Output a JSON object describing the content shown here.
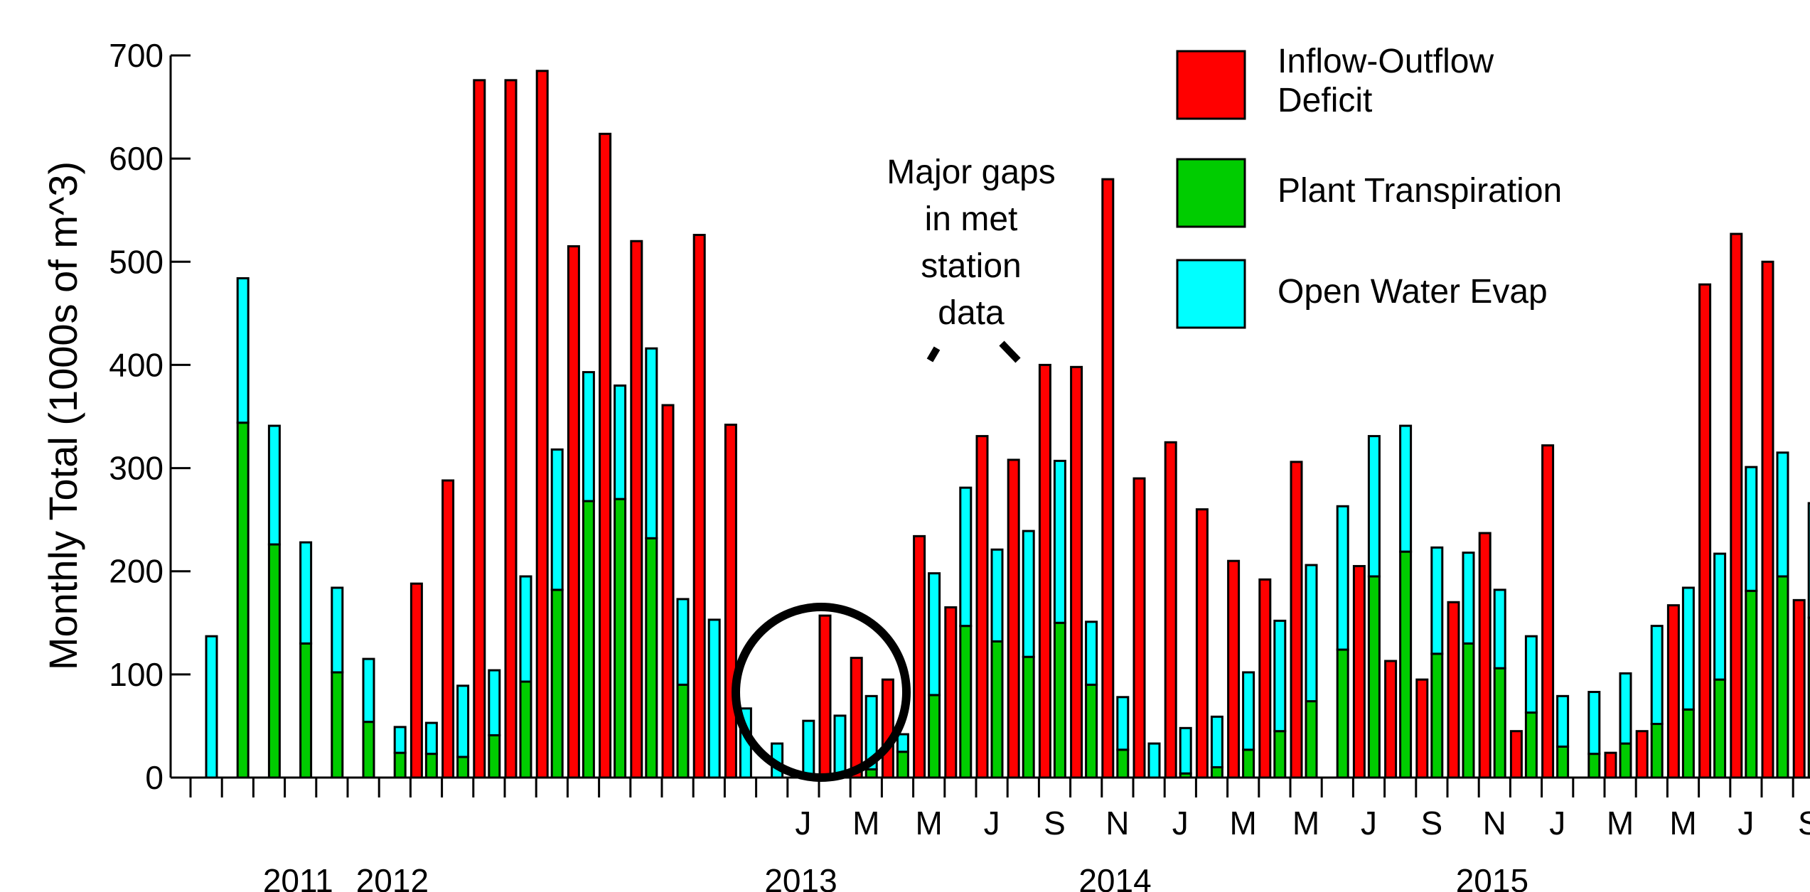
{
  "chart_data": {
    "type": "bar",
    "ylabel": "Monthly Total (1000s of m^3)",
    "ylim": [
      0,
      700
    ],
    "yticks": [
      0,
      100,
      200,
      300,
      400,
      500,
      600,
      700
    ],
    "month_labels": [
      "J",
      "M",
      "M",
      "J",
      "S",
      "N",
      "J",
      "M",
      "M",
      "J",
      "S",
      "N",
      "J",
      "M",
      "M",
      "J",
      "S"
    ],
    "year_labels": [
      "2011",
      "2012",
      "2013",
      "2014",
      "2015"
    ],
    "legend": [
      {
        "label_lines": [
          "Inflow-Outflow",
          "Deficit"
        ],
        "color": "#ff0000"
      },
      {
        "label_lines": [
          "Plant Transpiration"
        ],
        "color": "#00cc00"
      },
      {
        "label_lines": [
          "Open Water Evap"
        ],
        "color": "#00ffff"
      }
    ],
    "annotation": [
      "Major gaps",
      "in met",
      "station",
      "data"
    ],
    "series": [
      {
        "name": "Inflow-Outflow Deficit",
        "color": "#ff0000",
        "values": [
          0,
          0,
          0,
          0,
          0,
          0,
          0,
          188,
          288,
          676,
          676,
          685,
          515,
          624,
          520,
          361,
          526,
          342,
          0,
          0,
          157,
          116,
          95,
          234,
          165,
          331,
          308,
          400,
          398,
          580,
          290,
          325,
          260,
          210,
          192,
          306,
          0,
          205,
          113,
          95,
          170,
          237,
          45,
          322,
          0,
          24,
          45,
          167,
          478,
          527,
          500,
          172,
          32
        ]
      },
      {
        "name": "Plant Transpiration",
        "color": "#00cc00",
        "values": [
          0,
          344,
          226,
          130,
          102,
          54,
          24,
          23,
          20,
          41,
          93,
          182,
          268,
          270,
          232,
          90,
          0,
          0,
          0,
          0,
          3,
          8,
          25,
          80,
          147,
          132,
          117,
          150,
          90,
          27,
          0,
          4,
          10,
          27,
          45,
          74,
          124,
          195,
          219,
          120,
          130,
          106,
          63,
          30,
          23,
          33,
          52,
          66,
          95,
          181,
          195,
          155,
          0
        ]
      },
      {
        "name": "Open Water Evap",
        "color": "#00ffff",
        "values": [
          137,
          140,
          115,
          98,
          82,
          61,
          25,
          30,
          69,
          63,
          102,
          136,
          125,
          110,
          184,
          83,
          153,
          67,
          33,
          55,
          57,
          71,
          17,
          118,
          134,
          89,
          122,
          157,
          61,
          51,
          33,
          44,
          49,
          75,
          107,
          132,
          139,
          136,
          122,
          103,
          88,
          76,
          74,
          49,
          60,
          68,
          95,
          118,
          122,
          120,
          120,
          111,
          0
        ]
      }
    ]
  }
}
